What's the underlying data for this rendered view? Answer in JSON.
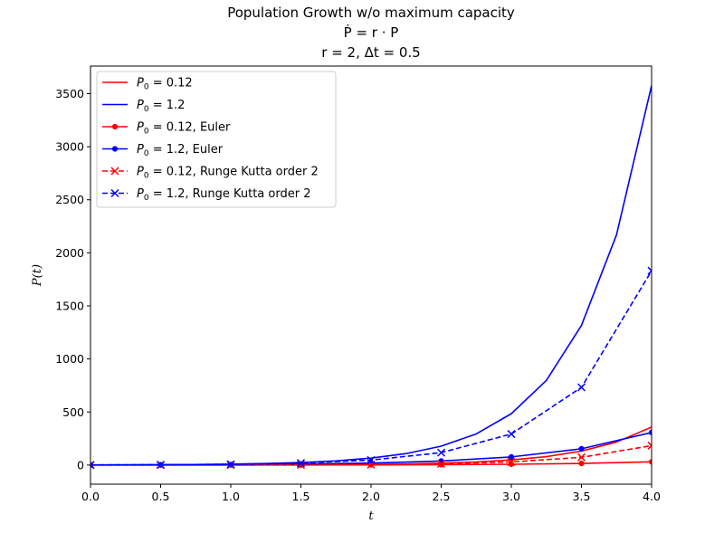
{
  "chart_data": {
    "type": "line",
    "title_lines": [
      "Population Growth w/o maximum capacity",
      "Ṗ = r · P",
      "r = 2, Δt = 0.5"
    ],
    "xlabel": "t",
    "ylabel": "P(t)",
    "xlim": [
      0,
      4
    ],
    "ylim": [
      -180,
      3760
    ],
    "xticks": [
      0.0,
      0.5,
      1.0,
      1.5,
      2.0,
      2.5,
      3.0,
      3.5,
      4.0
    ],
    "xtick_labels": [
      "0.0",
      "0.5",
      "1.0",
      "1.5",
      "2.0",
      "2.5",
      "3.0",
      "3.5",
      "4.0"
    ],
    "yticks": [
      0,
      500,
      1000,
      1500,
      2000,
      2500,
      3000,
      3500
    ],
    "ytick_labels": [
      "0",
      "500",
      "1000",
      "1500",
      "2000",
      "2500",
      "3000",
      "3500"
    ],
    "grid": false,
    "legend_position": "upper-left",
    "series": [
      {
        "name": "P0 = 0.12",
        "label_parts": [
          "P",
          "0",
          " = 0.12"
        ],
        "color": "#ff0000",
        "style": "solid",
        "marker": "none",
        "x": [
          0,
          0.25,
          0.5,
          0.75,
          1.0,
          1.25,
          1.5,
          1.75,
          2.0,
          2.25,
          2.5,
          2.75,
          3.0,
          3.25,
          3.5,
          3.75,
          4.0
        ],
        "y": [
          0.12,
          0.2,
          0.33,
          0.54,
          0.89,
          1.46,
          2.41,
          3.97,
          6.55,
          10.8,
          17.8,
          29.4,
          48.4,
          79.8,
          131.6,
          217.0,
          357.7
        ]
      },
      {
        "name": "P0 = 1.2",
        "label_parts": [
          "P",
          "0",
          " = 1.2"
        ],
        "color": "#0000ff",
        "style": "solid",
        "marker": "none",
        "x": [
          0,
          0.25,
          0.5,
          0.75,
          1.0,
          1.25,
          1.5,
          1.75,
          2.0,
          2.25,
          2.5,
          2.75,
          3.0,
          3.25,
          3.5,
          3.75,
          4.0
        ],
        "y": [
          1.2,
          1.98,
          3.26,
          5.38,
          8.87,
          14.6,
          24.1,
          39.7,
          65.5,
          108.0,
          178.2,
          293.7,
          484.1,
          798.2,
          1316.0,
          2170.0,
          3577.0
        ]
      },
      {
        "name": "P0 = 0.12, Euler",
        "label_parts": [
          "P",
          "0",
          " = 0.12, Euler"
        ],
        "color": "#ff0000",
        "style": "solid",
        "marker": "dot",
        "x": [
          0,
          0.5,
          1.0,
          1.5,
          2.0,
          2.5,
          3.0,
          3.5,
          4.0
        ],
        "y": [
          0.12,
          0.24,
          0.48,
          0.96,
          1.92,
          3.84,
          7.68,
          15.36,
          30.72
        ]
      },
      {
        "name": "P0 = 1.2, Euler",
        "label_parts": [
          "P",
          "0",
          " = 1.2, Euler"
        ],
        "color": "#0000ff",
        "style": "solid",
        "marker": "dot",
        "x": [
          0,
          0.5,
          1.0,
          1.5,
          2.0,
          2.5,
          3.0,
          3.5,
          4.0
        ],
        "y": [
          1.2,
          2.4,
          4.8,
          9.6,
          19.2,
          38.4,
          76.8,
          153.6,
          307.2
        ]
      },
      {
        "name": "P0 = 0.12, Runge Kutta order 2",
        "label_parts": [
          "P",
          "0",
          " = 0.12, Runge Kutta order 2"
        ],
        "color": "#ff0000",
        "style": "dashed",
        "marker": "x",
        "x": [
          0,
          0.5,
          1.0,
          1.5,
          2.0,
          2.5,
          3.0,
          3.5,
          4.0
        ],
        "y": [
          0.12,
          0.3,
          0.75,
          1.88,
          4.69,
          11.72,
          29.3,
          73.2,
          183.1
        ]
      },
      {
        "name": "P0 = 1.2, Runge Kutta order 2",
        "label_parts": [
          "P",
          "0",
          " = 1.2, Runge Kutta order 2"
        ],
        "color": "#0000ff",
        "style": "dashed",
        "marker": "x",
        "x": [
          0,
          0.5,
          1.0,
          1.5,
          2.0,
          2.5,
          3.0,
          3.5,
          4.0
        ],
        "y": [
          1.2,
          3.0,
          7.5,
          18.75,
          46.9,
          117.2,
          293.0,
          732.4,
          1831.1
        ]
      }
    ]
  }
}
